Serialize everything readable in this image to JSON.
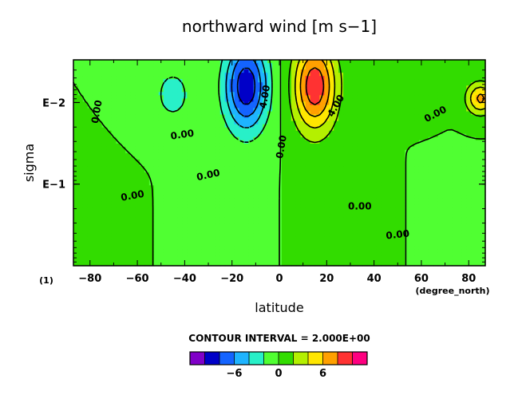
{
  "chart_data": {
    "type": "heatmap",
    "title": "northward wind [m s−1]",
    "xlabel": "latitude",
    "ylabel": "sigma",
    "x_unit": "(degree_north)",
    "y_axis_note": "(1)",
    "xlim": [
      -87,
      87
    ],
    "x_ticks": [
      -80,
      -60,
      -40,
      -20,
      0,
      20,
      40,
      60,
      80
    ],
    "x_tick_labels": [
      "−80",
      "−60",
      "−40",
      "−20",
      "0",
      "20",
      "40",
      "60",
      "80"
    ],
    "y_scale": "log",
    "y_reversed": true,
    "ylim": [
      0.003,
      1.0
    ],
    "y_ticks": [
      0.01,
      0.1
    ],
    "y_tick_labels": [
      "E−2",
      "E−1"
    ],
    "contour_interval_text": "CONTOUR INTERVAL = 2.000E+00",
    "contour_interval": 2,
    "contour_labels": [
      {
        "text": "0.00",
        "x": -77,
        "y": 0.013,
        "rotate": -80
      },
      {
        "text": "0.00",
        "x": -41,
        "y": 0.025,
        "rotate": -8
      },
      {
        "text": "0.00",
        "x": -30,
        "y": 0.078,
        "rotate": -12
      },
      {
        "text": "0.00",
        "x": -62,
        "y": 0.14,
        "rotate": -10
      },
      {
        "text": "4.00",
        "x": -6,
        "y": 0.0085,
        "rotate": -80
      },
      {
        "text": "4.00",
        "x": 24,
        "y": 0.011,
        "rotate": -60
      },
      {
        "text": "0.00",
        "x": 1,
        "y": 0.035,
        "rotate": -80
      },
      {
        "text": "0.00",
        "x": 66,
        "y": 0.014,
        "rotate": -28
      },
      {
        "text": "0.00",
        "x": 34,
        "y": 0.19,
        "rotate": 0
      },
      {
        "text": "0.00",
        "x": 50,
        "y": 0.42,
        "rotate": -6
      }
    ],
    "colorbar": {
      "levels": [
        -10,
        -8,
        -6,
        -4,
        -2,
        0,
        2,
        4,
        6,
        8,
        10
      ],
      "tick_labels": [
        "−6",
        "0",
        "6"
      ],
      "tick_values": [
        -6,
        0,
        6
      ]
    },
    "grid": false
  },
  "colors": {
    "palette": [
      "#8000c8",
      "#0000c8",
      "#1464ff",
      "#1eb4ff",
      "#28f0c8",
      "#50ff32",
      "#32dc00",
      "#b4f000",
      "#ffe600",
      "#ffa000",
      "#ff3232",
      "#ff0080"
    ]
  }
}
